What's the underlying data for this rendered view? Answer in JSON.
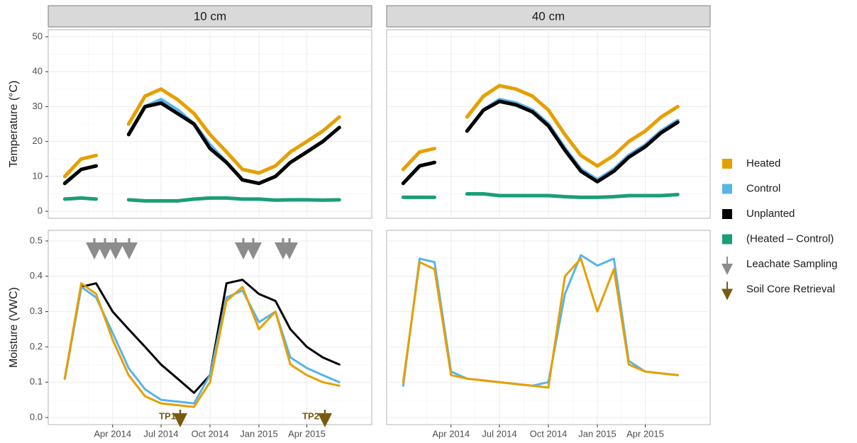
{
  "chart_data": [
    {
      "type": "line",
      "title": "10 cm",
      "ylabel": "Temperature (°C)",
      "x": [
        "2014-01",
        "2014-02",
        "2014-03",
        "2014-04",
        "2014-05",
        "2014-06",
        "2014-07",
        "2014-08",
        "2014-09",
        "2014-10",
        "2014-11",
        "2014-12",
        "2015-01",
        "2015-02",
        "2015-03",
        "2015-04",
        "2015-05",
        "2015-06"
      ],
      "xlim": [
        "2013-12",
        "2015-08"
      ],
      "xticks": [
        {
          "value": "2014-04",
          "label": "Apr 2014"
        },
        {
          "value": "2014-07",
          "label": "Jul 2014"
        },
        {
          "value": "2014-10",
          "label": "Oct 2014"
        },
        {
          "value": "2015-01",
          "label": "Jan 2015"
        },
        {
          "value": "2015-04",
          "label": "Apr 2015"
        }
      ],
      "ylim": [
        -2,
        52
      ],
      "yticks": [
        0,
        10,
        20,
        30,
        40,
        50
      ],
      "grid": true,
      "series": [
        {
          "name": "Heated",
          "color": "#E69F00",
          "values": [
            10,
            15,
            16,
            null,
            25,
            33,
            35,
            32,
            28,
            22,
            17,
            12,
            11,
            13,
            17,
            20,
            23,
            27
          ]
        },
        {
          "name": "Control",
          "color": "#56B4E9",
          "values": [
            8,
            12,
            13,
            null,
            22,
            30,
            32,
            29,
            25,
            19,
            14,
            9,
            8,
            10,
            14,
            17,
            20,
            24
          ]
        },
        {
          "name": "Unplanted",
          "color": "#000000",
          "values": [
            8,
            12,
            13,
            null,
            22,
            30,
            31,
            28,
            25,
            18,
            14,
            9,
            8,
            10,
            14,
            17,
            20,
            24
          ]
        },
        {
          "name": "(Heated – Control)",
          "color": "#1B9E77",
          "values": [
            3.5,
            3.8,
            3.5,
            null,
            3.3,
            3.0,
            3.0,
            3.0,
            3.5,
            3.8,
            3.8,
            3.5,
            3.5,
            3.2,
            3.3,
            3.3,
            3.2,
            3.3
          ]
        }
      ]
    },
    {
      "type": "line",
      "title": "40 cm",
      "x": [
        "2014-01",
        "2014-02",
        "2014-03",
        "2014-04",
        "2014-05",
        "2014-06",
        "2014-07",
        "2014-08",
        "2014-09",
        "2014-10",
        "2014-11",
        "2014-12",
        "2015-01",
        "2015-02",
        "2015-03",
        "2015-04",
        "2015-05",
        "2015-06"
      ],
      "xlim": [
        "2013-12",
        "2015-08"
      ],
      "xticks": [
        {
          "value": "2014-04",
          "label": "Apr 2014"
        },
        {
          "value": "2014-07",
          "label": "Jul 2014"
        },
        {
          "value": "2014-10",
          "label": "Oct 2014"
        },
        {
          "value": "2015-01",
          "label": "Jan 2015"
        },
        {
          "value": "2015-04",
          "label": "Apr 2015"
        }
      ],
      "ylim": [
        -2,
        52
      ],
      "yticks": [
        0,
        10,
        20,
        30,
        40,
        50
      ],
      "grid": true,
      "series": [
        {
          "name": "Heated",
          "color": "#E69F00",
          "values": [
            12,
            17,
            18,
            null,
            27,
            33,
            36,
            35,
            33,
            29,
            22,
            16,
            13,
            16,
            20,
            23,
            27,
            30
          ]
        },
        {
          "name": "Control",
          "color": "#56B4E9",
          "values": [
            8,
            13,
            14,
            null,
            23,
            29,
            32,
            31,
            29,
            25,
            18,
            12,
            9,
            12,
            16,
            19,
            23,
            26
          ]
        },
        {
          "name": "Unplanted",
          "color": "#000000",
          "values": [
            8,
            13,
            14,
            null,
            23,
            29,
            31.5,
            30.5,
            28.5,
            24.5,
            17.5,
            11.5,
            8.5,
            11.5,
            15.5,
            18.5,
            22.5,
            25.5
          ]
        },
        {
          "name": "(Heated – Control)",
          "color": "#1B9E77",
          "values": [
            4,
            4,
            4,
            null,
            5,
            5,
            4.5,
            4.5,
            4.5,
            4.5,
            4.2,
            4,
            4,
            4.2,
            4.5,
            4.5,
            4.5,
            4.8
          ]
        }
      ]
    },
    {
      "type": "line",
      "ylabel": "Moisture (VWC)",
      "x": [
        "2014-01",
        "2014-02",
        "2014-03",
        "2014-04",
        "2014-05",
        "2014-06",
        "2014-07",
        "2014-08",
        "2014-09",
        "2014-10",
        "2014-11",
        "2014-12",
        "2015-01",
        "2015-02",
        "2015-03",
        "2015-04",
        "2015-05",
        "2015-06"
      ],
      "xlim": [
        "2013-12",
        "2015-08"
      ],
      "xticks": [
        {
          "value": "2014-04",
          "label": "Apr 2014"
        },
        {
          "value": "2014-07",
          "label": "Jul 2014"
        },
        {
          "value": "2014-10",
          "label": "Oct 2014"
        },
        {
          "value": "2015-01",
          "label": "Jan 2015"
        },
        {
          "value": "2015-04",
          "label": "Apr 2015"
        }
      ],
      "ylim": [
        -0.02,
        0.53
      ],
      "yticks": [
        {
          "value": 0,
          "label": "0.0"
        },
        {
          "value": 0.1,
          "label": "0.1"
        },
        {
          "value": 0.2,
          "label": "0.2"
        },
        {
          "value": 0.3,
          "label": "0.3"
        },
        {
          "value": 0.4,
          "label": "0.4"
        },
        {
          "value": 0.5,
          "label": "0.5"
        }
      ],
      "grid": true,
      "series": [
        {
          "name": "Unplanted",
          "color": "#000000",
          "values": [
            0.11,
            0.37,
            0.38,
            0.3,
            0.25,
            0.2,
            0.15,
            0.11,
            0.07,
            0.12,
            0.38,
            0.39,
            0.35,
            0.33,
            0.25,
            0.2,
            0.17,
            0.15
          ]
        },
        {
          "name": "Control",
          "color": "#56B4E9",
          "values": [
            0.11,
            0.37,
            0.34,
            0.24,
            0.14,
            0.08,
            0.05,
            0.045,
            0.04,
            0.12,
            0.34,
            0.36,
            0.27,
            0.3,
            0.17,
            0.14,
            0.12,
            0.1
          ]
        },
        {
          "name": "Heated",
          "color": "#E69F00",
          "values": [
            0.11,
            0.38,
            0.35,
            0.22,
            0.12,
            0.06,
            0.04,
            0.035,
            0.03,
            0.1,
            0.33,
            0.37,
            0.25,
            0.3,
            0.15,
            0.12,
            0.1,
            0.09
          ]
        }
      ],
      "annotations": [
        {
          "text": "TP1"
        },
        {
          "text": "TP2"
        }
      ]
    },
    {
      "type": "line",
      "x": [
        "2014-01",
        "2014-02",
        "2014-03",
        "2014-04",
        "2014-05",
        "2014-06",
        "2014-07",
        "2014-08",
        "2014-09",
        "2014-10",
        "2014-11",
        "2014-12",
        "2015-01",
        "2015-02",
        "2015-03",
        "2015-04",
        "2015-05",
        "2015-06"
      ],
      "xlim": [
        "2013-12",
        "2015-08"
      ],
      "xticks": [
        {
          "value": "2014-04",
          "label": "Apr 2014"
        },
        {
          "value": "2014-07",
          "label": "Jul 2014"
        },
        {
          "value": "2014-10",
          "label": "Oct 2014"
        },
        {
          "value": "2015-01",
          "label": "Jan 2015"
        },
        {
          "value": "2015-04",
          "label": "Apr 2015"
        }
      ],
      "ylim": [
        -0.02,
        0.53
      ],
      "yticks": [
        {
          "value": 0,
          "label": "0.0"
        },
        {
          "value": 0.1,
          "label": "0.1"
        },
        {
          "value": 0.2,
          "label": "0.2"
        },
        {
          "value": 0.3,
          "label": "0.3"
        },
        {
          "value": 0.4,
          "label": "0.4"
        },
        {
          "value": 0.5,
          "label": "0.5"
        }
      ],
      "grid": true,
      "series": [
        {
          "name": "Control",
          "color": "#56B4E9",
          "values": [
            0.09,
            0.45,
            0.44,
            0.13,
            0.11,
            0.105,
            0.1,
            0.095,
            0.09,
            0.1,
            0.35,
            0.46,
            0.43,
            0.45,
            0.16,
            0.13,
            0.125,
            0.12
          ]
        },
        {
          "name": "Heated",
          "color": "#E69F00",
          "values": [
            0.1,
            0.44,
            0.42,
            0.12,
            0.11,
            0.105,
            0.1,
            0.095,
            0.09,
            0.085,
            0.4,
            0.45,
            0.3,
            0.42,
            0.15,
            0.13,
            0.125,
            0.12
          ]
        }
      ]
    }
  ],
  "legend_extra": [
    {
      "name": "Leachate Sampling",
      "color": "#8c8c8c"
    },
    {
      "name": "Soil Core Retrieval",
      "color": "#7a5a10"
    }
  ]
}
